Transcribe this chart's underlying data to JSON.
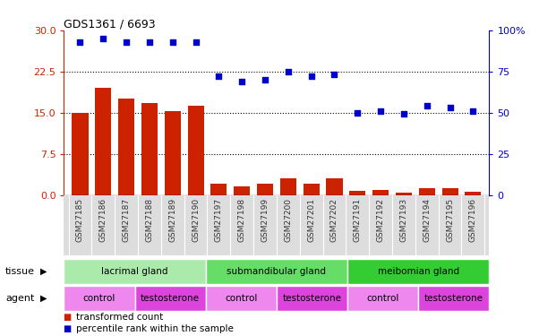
{
  "title": "GDS1361 / 6693",
  "samples": [
    "GSM27185",
    "GSM27186",
    "GSM27187",
    "GSM27188",
    "GSM27189",
    "GSM27190",
    "GSM27197",
    "GSM27198",
    "GSM27199",
    "GSM27200",
    "GSM27201",
    "GSM27202",
    "GSM27191",
    "GSM27192",
    "GSM27193",
    "GSM27194",
    "GSM27195",
    "GSM27196"
  ],
  "bar_values": [
    15.0,
    19.5,
    17.5,
    16.8,
    15.3,
    16.2,
    2.0,
    1.5,
    2.0,
    3.0,
    2.0,
    3.0,
    0.7,
    0.9,
    0.4,
    1.2,
    1.2,
    0.5
  ],
  "dot_values": [
    93,
    95,
    93,
    93,
    93,
    93,
    72,
    69,
    70,
    75,
    72,
    73,
    50,
    51,
    49,
    54,
    53,
    51
  ],
  "ylim_left": [
    0,
    30
  ],
  "ylim_right": [
    0,
    100
  ],
  "yticks_left": [
    0,
    7.5,
    15,
    22.5,
    30
  ],
  "yticks_right": [
    0,
    25,
    50,
    75,
    100
  ],
  "ytick_right_labels": [
    "0",
    "25",
    "50",
    "75",
    "100%"
  ],
  "bar_color": "#cc2200",
  "dot_color": "#0000cc",
  "tissue_groups": [
    {
      "label": "lacrimal gland",
      "start": 0,
      "end": 6,
      "color": "#aaeaaa"
    },
    {
      "label": "submandibular gland",
      "start": 6,
      "end": 12,
      "color": "#66dd66"
    },
    {
      "label": "meibomian gland",
      "start": 12,
      "end": 18,
      "color": "#33cc33"
    }
  ],
  "agent_groups": [
    {
      "label": "control",
      "start": 0,
      "end": 3,
      "color": "#ee88ee"
    },
    {
      "label": "testosterone",
      "start": 3,
      "end": 6,
      "color": "#dd44dd"
    },
    {
      "label": "control",
      "start": 6,
      "end": 9,
      "color": "#ee88ee"
    },
    {
      "label": "testosterone",
      "start": 9,
      "end": 12,
      "color": "#dd44dd"
    },
    {
      "label": "control",
      "start": 12,
      "end": 15,
      "color": "#ee88ee"
    },
    {
      "label": "testosterone",
      "start": 15,
      "end": 18,
      "color": "#dd44dd"
    }
  ],
  "legend_items": [
    {
      "label": "transformed count",
      "color": "#cc2200"
    },
    {
      "label": "percentile rank within the sample",
      "color": "#0000cc"
    }
  ],
  "background_color": "#ffffff",
  "xticklabel_bg": "#dddddd"
}
